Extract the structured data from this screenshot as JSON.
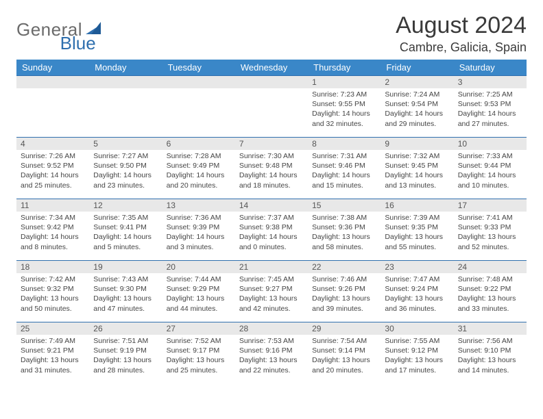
{
  "brand": {
    "part1": "General",
    "part2": "Blue"
  },
  "title": "August 2024",
  "location": "Cambre, Galicia, Spain",
  "colors": {
    "header_bg": "#3a87c8",
    "border": "#2f6fae",
    "daynum_bg": "#e8e8e8",
    "text": "#3a3a3a"
  },
  "weekdays": [
    "Sunday",
    "Monday",
    "Tuesday",
    "Wednesday",
    "Thursday",
    "Friday",
    "Saturday"
  ],
  "weeks": [
    [
      null,
      null,
      null,
      null,
      {
        "n": "1",
        "sr": "7:23 AM",
        "ss": "9:55 PM",
        "dl": "14 hours and 32 minutes."
      },
      {
        "n": "2",
        "sr": "7:24 AM",
        "ss": "9:54 PM",
        "dl": "14 hours and 29 minutes."
      },
      {
        "n": "3",
        "sr": "7:25 AM",
        "ss": "9:53 PM",
        "dl": "14 hours and 27 minutes."
      }
    ],
    [
      {
        "n": "4",
        "sr": "7:26 AM",
        "ss": "9:52 PM",
        "dl": "14 hours and 25 minutes."
      },
      {
        "n": "5",
        "sr": "7:27 AM",
        "ss": "9:50 PM",
        "dl": "14 hours and 23 minutes."
      },
      {
        "n": "6",
        "sr": "7:28 AM",
        "ss": "9:49 PM",
        "dl": "14 hours and 20 minutes."
      },
      {
        "n": "7",
        "sr": "7:30 AM",
        "ss": "9:48 PM",
        "dl": "14 hours and 18 minutes."
      },
      {
        "n": "8",
        "sr": "7:31 AM",
        "ss": "9:46 PM",
        "dl": "14 hours and 15 minutes."
      },
      {
        "n": "9",
        "sr": "7:32 AM",
        "ss": "9:45 PM",
        "dl": "14 hours and 13 minutes."
      },
      {
        "n": "10",
        "sr": "7:33 AM",
        "ss": "9:44 PM",
        "dl": "14 hours and 10 minutes."
      }
    ],
    [
      {
        "n": "11",
        "sr": "7:34 AM",
        "ss": "9:42 PM",
        "dl": "14 hours and 8 minutes."
      },
      {
        "n": "12",
        "sr": "7:35 AM",
        "ss": "9:41 PM",
        "dl": "14 hours and 5 minutes."
      },
      {
        "n": "13",
        "sr": "7:36 AM",
        "ss": "9:39 PM",
        "dl": "14 hours and 3 minutes."
      },
      {
        "n": "14",
        "sr": "7:37 AM",
        "ss": "9:38 PM",
        "dl": "14 hours and 0 minutes."
      },
      {
        "n": "15",
        "sr": "7:38 AM",
        "ss": "9:36 PM",
        "dl": "13 hours and 58 minutes."
      },
      {
        "n": "16",
        "sr": "7:39 AM",
        "ss": "9:35 PM",
        "dl": "13 hours and 55 minutes."
      },
      {
        "n": "17",
        "sr": "7:41 AM",
        "ss": "9:33 PM",
        "dl": "13 hours and 52 minutes."
      }
    ],
    [
      {
        "n": "18",
        "sr": "7:42 AM",
        "ss": "9:32 PM",
        "dl": "13 hours and 50 minutes."
      },
      {
        "n": "19",
        "sr": "7:43 AM",
        "ss": "9:30 PM",
        "dl": "13 hours and 47 minutes."
      },
      {
        "n": "20",
        "sr": "7:44 AM",
        "ss": "9:29 PM",
        "dl": "13 hours and 44 minutes."
      },
      {
        "n": "21",
        "sr": "7:45 AM",
        "ss": "9:27 PM",
        "dl": "13 hours and 42 minutes."
      },
      {
        "n": "22",
        "sr": "7:46 AM",
        "ss": "9:26 PM",
        "dl": "13 hours and 39 minutes."
      },
      {
        "n": "23",
        "sr": "7:47 AM",
        "ss": "9:24 PM",
        "dl": "13 hours and 36 minutes."
      },
      {
        "n": "24",
        "sr": "7:48 AM",
        "ss": "9:22 PM",
        "dl": "13 hours and 33 minutes."
      }
    ],
    [
      {
        "n": "25",
        "sr": "7:49 AM",
        "ss": "9:21 PM",
        "dl": "13 hours and 31 minutes."
      },
      {
        "n": "26",
        "sr": "7:51 AM",
        "ss": "9:19 PM",
        "dl": "13 hours and 28 minutes."
      },
      {
        "n": "27",
        "sr": "7:52 AM",
        "ss": "9:17 PM",
        "dl": "13 hours and 25 minutes."
      },
      {
        "n": "28",
        "sr": "7:53 AM",
        "ss": "9:16 PM",
        "dl": "13 hours and 22 minutes."
      },
      {
        "n": "29",
        "sr": "7:54 AM",
        "ss": "9:14 PM",
        "dl": "13 hours and 20 minutes."
      },
      {
        "n": "30",
        "sr": "7:55 AM",
        "ss": "9:12 PM",
        "dl": "13 hours and 17 minutes."
      },
      {
        "n": "31",
        "sr": "7:56 AM",
        "ss": "9:10 PM",
        "dl": "13 hours and 14 minutes."
      }
    ]
  ],
  "labels": {
    "sunrise": "Sunrise: ",
    "sunset": "Sunset: ",
    "daylight": "Daylight: "
  }
}
